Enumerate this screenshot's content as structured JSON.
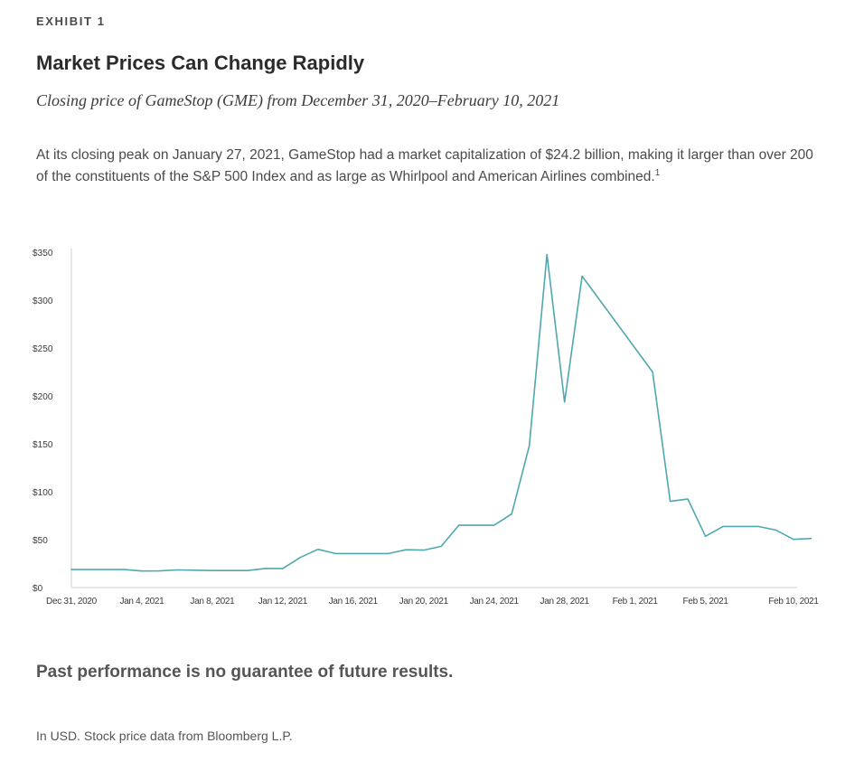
{
  "header": {
    "exhibit": "EXHIBIT 1",
    "title": "Market Prices Can Change Rapidly",
    "subtitle": "Closing price of GameStop (GME) from December 31, 2020–February 10, 2021",
    "description": "At its closing peak on January 27, 2021, GameStop had a market capitalization of $24.2 billion, making it larger than over 200 of the constituents of the S&P 500 Index and as large as Whirlpool and American Airlines combined.",
    "footnote_mark": "1"
  },
  "chart_data": {
    "type": "line",
    "title": "",
    "xlabel": "",
    "ylabel": "",
    "ylim": [
      0,
      350
    ],
    "y_ticks": [
      {
        "value": 0,
        "label": "$0"
      },
      {
        "value": 50,
        "label": "$50"
      },
      {
        "value": 100,
        "label": "$100"
      },
      {
        "value": 150,
        "label": "$150"
      },
      {
        "value": 200,
        "label": "$200"
      },
      {
        "value": 250,
        "label": "$250"
      },
      {
        "value": 300,
        "label": "$300"
      },
      {
        "value": 350,
        "label": "$350"
      }
    ],
    "x_ticks": [
      {
        "date": "2020-12-31",
        "label": "Dec 31, 2020"
      },
      {
        "date": "2021-01-04",
        "label": "Jan 4, 2021"
      },
      {
        "date": "2021-01-08",
        "label": "Jan 8, 2021"
      },
      {
        "date": "2021-01-12",
        "label": "Jan 12, 2021"
      },
      {
        "date": "2021-01-16",
        "label": "Jan 16, 2021"
      },
      {
        "date": "2021-01-20",
        "label": "Jan 20, 2021"
      },
      {
        "date": "2021-01-24",
        "label": "Jan 24, 2021"
      },
      {
        "date": "2021-01-28",
        "label": "Jan 28, 2021"
      },
      {
        "date": "2021-02-01",
        "label": "Feb 1, 2021"
      },
      {
        "date": "2021-02-05",
        "label": "Feb 5, 2021"
      },
      {
        "date": "2021-02-10",
        "label": "Feb 10, 2021"
      }
    ],
    "xlim": [
      "2020-12-31",
      "2021-02-10"
    ],
    "grid": false,
    "line_color": "#4fa8ad",
    "series": [
      {
        "points": [
          {
            "x": "2020-12-31",
            "y": 18.8
          },
          {
            "x": "2021-01-01",
            "y": 18.8
          },
          {
            "x": "2021-01-02",
            "y": 18.8
          },
          {
            "x": "2021-01-03",
            "y": 18.8
          },
          {
            "x": "2021-01-04",
            "y": 17.3
          },
          {
            "x": "2021-01-05",
            "y": 17.4
          },
          {
            "x": "2021-01-06",
            "y": 18.4
          },
          {
            "x": "2021-01-07",
            "y": 18.1
          },
          {
            "x": "2021-01-08",
            "y": 17.7
          },
          {
            "x": "2021-01-09",
            "y": 17.7
          },
          {
            "x": "2021-01-10",
            "y": 17.7
          },
          {
            "x": "2021-01-11",
            "y": 19.9
          },
          {
            "x": "2021-01-12",
            "y": 19.9
          },
          {
            "x": "2021-01-13",
            "y": 31.4
          },
          {
            "x": "2021-01-14",
            "y": 39.9
          },
          {
            "x": "2021-01-15",
            "y": 35.5
          },
          {
            "x": "2021-01-16",
            "y": 35.5
          },
          {
            "x": "2021-01-17",
            "y": 35.5
          },
          {
            "x": "2021-01-18",
            "y": 35.5
          },
          {
            "x": "2021-01-19",
            "y": 39.4
          },
          {
            "x": "2021-01-20",
            "y": 39.1
          },
          {
            "x": "2021-01-21",
            "y": 43.0
          },
          {
            "x": "2021-01-22",
            "y": 65.0
          },
          {
            "x": "2021-01-23",
            "y": 65.0
          },
          {
            "x": "2021-01-24",
            "y": 65.0
          },
          {
            "x": "2021-01-25",
            "y": 76.8
          },
          {
            "x": "2021-01-26",
            "y": 148.0
          },
          {
            "x": "2021-01-27",
            "y": 347.5
          },
          {
            "x": "2021-01-28",
            "y": 193.6
          },
          {
            "x": "2021-01-29",
            "y": 325.0
          },
          {
            "x": "2021-02-02",
            "y": 225.0
          },
          {
            "x": "2021-02-03",
            "y": 90.0
          },
          {
            "x": "2021-02-04",
            "y": 92.4
          },
          {
            "x": "2021-02-05",
            "y": 53.5
          },
          {
            "x": "2021-02-06",
            "y": 63.8
          },
          {
            "x": "2021-02-07",
            "y": 63.8
          },
          {
            "x": "2021-02-08",
            "y": 63.8
          },
          {
            "x": "2021-02-09",
            "y": 60.0
          },
          {
            "x": "2021-02-10",
            "y": 50.3
          },
          {
            "x": "2021-02-11",
            "y": 51.2
          }
        ]
      }
    ]
  },
  "footer": {
    "disclaimer": "Past performance is no guarantee of future results.",
    "source": "In USD. Stock price data from Bloomberg L.P."
  }
}
